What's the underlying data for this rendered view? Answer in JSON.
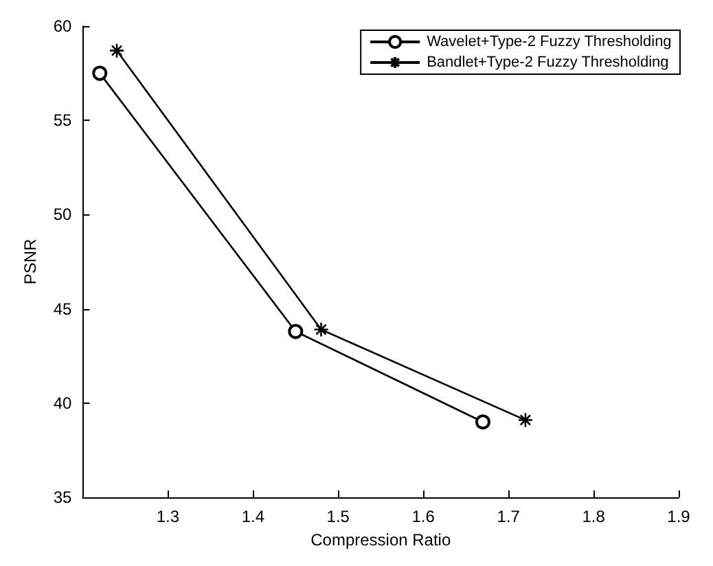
{
  "chart_data": {
    "type": "line",
    "xlabel": "Compression Ratio",
    "ylabel": "PSNR",
    "xlim": [
      1.2,
      1.9
    ],
    "xticks": [
      1.3,
      1.4,
      1.5,
      1.6,
      1.7,
      1.8,
      1.9
    ],
    "ylim": [
      35,
      60
    ],
    "yticks": [
      35,
      40,
      45,
      50,
      55,
      60
    ],
    "grid": false,
    "legend": "top right",
    "series": [
      {
        "name": "Wavelet+Type-2 Fuzzy Thresholding",
        "color": "#000000",
        "marker": "circle",
        "x": [
          1.22,
          1.45,
          1.67
        ],
        "values": [
          57.5,
          43.8,
          39.0
        ]
      },
      {
        "name": "Bandlet+Type-2 Fuzzy Thresholding",
        "color": "#000000",
        "marker": "cross",
        "x": [
          1.24,
          1.48,
          1.72
        ],
        "values": [
          58.7,
          43.9,
          39.1
        ]
      }
    ]
  }
}
